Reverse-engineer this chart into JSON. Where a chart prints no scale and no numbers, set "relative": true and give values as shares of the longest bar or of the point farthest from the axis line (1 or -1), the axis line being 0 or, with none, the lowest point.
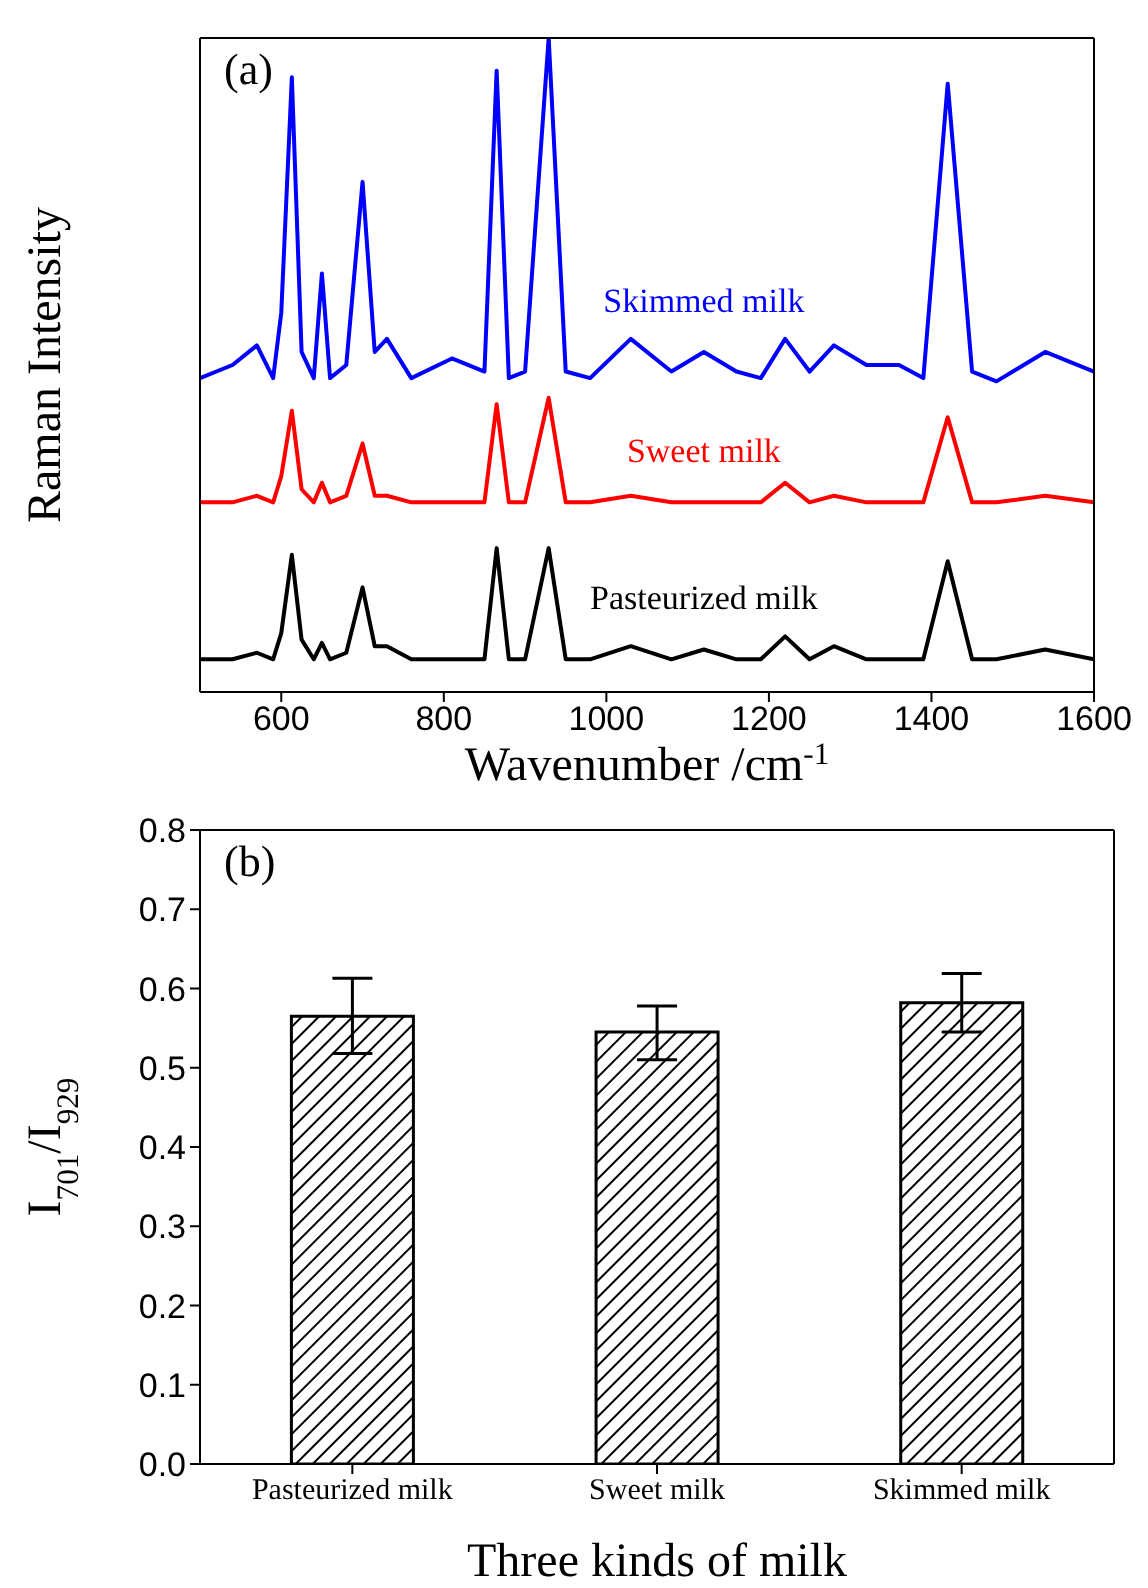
{
  "chart_data": [
    {
      "type": "line",
      "relative": true,
      "xlabel": "Wavenumber /cm$^{-1}$",
      "ylabel": "Raman Intensity",
      "annotations": [
        "(a)"
      ],
      "x": [
        500,
        540,
        570,
        590,
        600,
        613,
        625,
        640,
        650,
        660,
        680,
        700,
        715,
        730,
        760,
        810,
        850,
        865,
        880,
        900,
        929,
        950,
        980,
        1030,
        1080,
        1120,
        1160,
        1190,
        1220,
        1250,
        1280,
        1320,
        1360,
        1390,
        1420,
        1450,
        1480,
        1540,
        1600
      ],
      "xlim": [
        500,
        1600
      ],
      "xticks": [
        600,
        800,
        1000,
        1200,
        1400,
        1600
      ],
      "grid": false,
      "legend": false,
      "marker": "none",
      "line_style": "solid",
      "series": [
        {
          "name": "Skimmed milk",
          "color": "#0000ff",
          "values": [
            0.48,
            0.5,
            0.53,
            0.48,
            0.58,
            0.94,
            0.52,
            0.48,
            0.64,
            0.48,
            0.5,
            0.78,
            0.52,
            0.54,
            0.48,
            0.51,
            0.49,
            0.95,
            0.48,
            0.49,
            1.0,
            0.49,
            0.48,
            0.54,
            0.49,
            0.52,
            0.49,
            0.48,
            0.54,
            0.49,
            0.53,
            0.5,
            0.5,
            0.48,
            0.93,
            0.49,
            0.475,
            0.52,
            0.49
          ]
        },
        {
          "name": "Sweet milk",
          "color": "#ff0000",
          "values": [
            0.29,
            0.29,
            0.3,
            0.29,
            0.33,
            0.43,
            0.31,
            0.29,
            0.32,
            0.29,
            0.3,
            0.38,
            0.3,
            0.3,
            0.29,
            0.29,
            0.29,
            0.44,
            0.29,
            0.29,
            0.45,
            0.29,
            0.29,
            0.3,
            0.29,
            0.29,
            0.29,
            0.29,
            0.32,
            0.29,
            0.3,
            0.29,
            0.29,
            0.29,
            0.42,
            0.29,
            0.29,
            0.3,
            0.29
          ]
        },
        {
          "name": "Pasteurized milk",
          "color": "#000000",
          "values": [
            0.05,
            0.05,
            0.06,
            0.05,
            0.09,
            0.21,
            0.08,
            0.05,
            0.075,
            0.05,
            0.06,
            0.16,
            0.07,
            0.07,
            0.05,
            0.05,
            0.05,
            0.22,
            0.05,
            0.05,
            0.22,
            0.05,
            0.05,
            0.07,
            0.05,
            0.065,
            0.05,
            0.05,
            0.085,
            0.05,
            0.07,
            0.05,
            0.05,
            0.05,
            0.2,
            0.05,
            0.05,
            0.065,
            0.05
          ]
        }
      ]
    },
    {
      "type": "bar",
      "xlabel": "Three kinds of milk",
      "ylabel": "I$_{701}$/I$_{929}$",
      "annotations": [
        "(b)"
      ],
      "categories": [
        "Pasteurized milk",
        "Sweet milk",
        "Skimmed milk"
      ],
      "values": [
        0.565,
        0.545,
        0.582
      ],
      "color": "#000000",
      "errors": [
        [
          0.518,
          0.613
        ],
        [
          0.51,
          0.578
        ],
        [
          0.545,
          0.619
        ]
      ],
      "ylim": [
        0,
        0.8
      ],
      "yticks": [
        {
          "value": 0,
          "label": "0.0"
        },
        {
          "value": 0.1,
          "label": "0.1"
        },
        {
          "value": 0.2,
          "label": "0.2"
        },
        {
          "value": 0.3,
          "label": "0.3"
        },
        {
          "value": 0.4,
          "label": "0.4"
        },
        {
          "value": 0.5,
          "label": "0.5"
        },
        {
          "value": 0.6,
          "label": "0.6"
        },
        {
          "value": 0.7,
          "label": "0.7"
        },
        {
          "value": 0.8,
          "label": "0.8"
        }
      ],
      "grid": false,
      "legend": false
    }
  ]
}
